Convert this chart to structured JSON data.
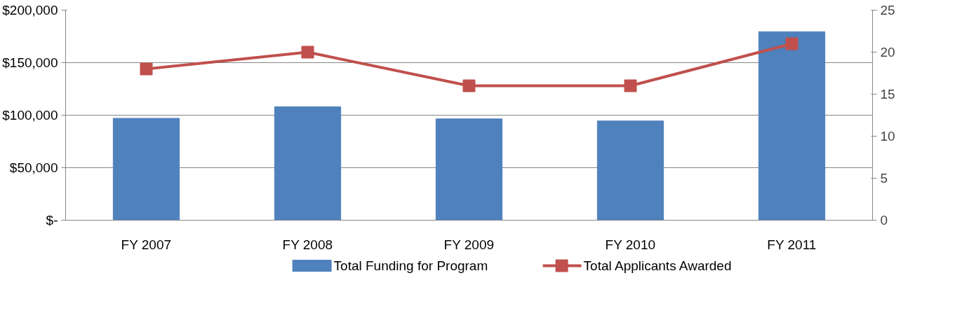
{
  "chart_data": {
    "type": "bar",
    "categories": [
      "FY 2007",
      "FY 2008",
      "FY 2009",
      "FY 2010",
      "FY 2011"
    ],
    "series": [
      {
        "name": "Total Funding for Program",
        "type": "bar",
        "color": "#4f81bd",
        "values": [
          97000,
          108000,
          96500,
          94500,
          179500
        ]
      },
      {
        "name": "Total Applicants Awarded",
        "type": "line",
        "axis": "y2",
        "color": "#c0504d",
        "marker": "square",
        "values": [
          18,
          20,
          16,
          16,
          21
        ]
      }
    ],
    "ylim": [
      0,
      200000
    ],
    "yticks": [
      {
        "value": 0,
        "label": "$-"
      },
      {
        "value": 50000,
        "label": "$50,000"
      },
      {
        "value": 100000,
        "label": "$100,000"
      },
      {
        "value": 150000,
        "label": "$150,000"
      },
      {
        "value": 200000,
        "label": "$200,000"
      }
    ],
    "y2lim": [
      0,
      25
    ],
    "y2ticks": [
      0,
      5,
      10,
      15,
      20,
      25
    ],
    "grid": "y",
    "legend": "bottom"
  }
}
